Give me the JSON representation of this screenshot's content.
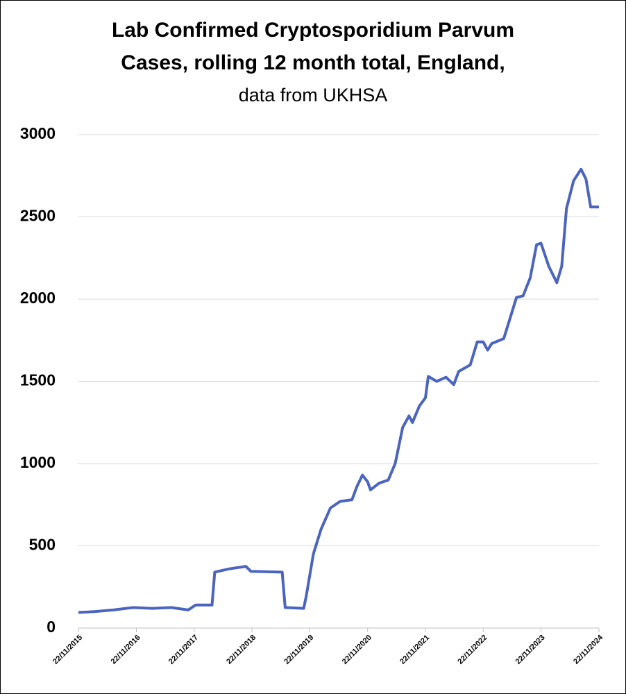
{
  "chart_data": {
    "type": "line",
    "title": [
      "Lab Confirmed Cryptosporidium Parvum",
      "Cases, rolling 12 month total, England,"
    ],
    "subtitle": "data from UKHSA",
    "x": [
      "2015-11-22",
      "2016-03-01",
      "2016-07-01",
      "2016-11-01",
      "2017-03-01",
      "2017-07-01",
      "2017-10-15",
      "2017-12-01",
      "2018-03-15",
      "2018-04-01",
      "2018-07-01",
      "2018-10-15",
      "2018-11-15",
      "2019-06-01",
      "2019-06-20",
      "2019-10-15",
      "2019-11-01",
      "2019-12-15",
      "2020-02-01",
      "2020-04-01",
      "2020-06-01",
      "2020-08-15",
      "2020-09-15",
      "2020-10-20",
      "2020-11-22",
      "2020-12-10",
      "2021-02-01",
      "2021-04-01",
      "2021-05-15",
      "2021-07-01",
      "2021-08-10",
      "2021-09-01",
      "2021-10-15",
      "2021-11-22",
      "2021-12-10",
      "2022-02-01",
      "2022-04-01",
      "2022-05-20",
      "2022-06-20",
      "2022-09-01",
      "2022-10-15",
      "2022-11-22",
      "2022-12-20",
      "2023-01-15",
      "2023-04-01",
      "2023-06-20",
      "2023-08-01",
      "2023-09-15",
      "2023-10-25",
      "2023-11-22",
      "2024-01-10",
      "2024-03-01",
      "2024-04-01",
      "2024-05-01",
      "2024-06-15",
      "2024-08-01",
      "2024-09-01",
      "2024-10-01",
      "2024-11-22"
    ],
    "series": [
      {
        "name": "Cases",
        "color": "#4a64c0",
        "values": [
          95,
          100,
          110,
          125,
          120,
          125,
          110,
          140,
          140,
          340,
          360,
          375,
          345,
          340,
          125,
          120,
          200,
          450,
          600,
          730,
          770,
          780,
          860,
          930,
          890,
          840,
          880,
          900,
          1000,
          1220,
          1290,
          1250,
          1350,
          1400,
          1530,
          1500,
          1525,
          1480,
          1560,
          1600,
          1740,
          1740,
          1690,
          1730,
          1760,
          2010,
          2020,
          2130,
          2330,
          2340,
          2200,
          2100,
          2200,
          2550,
          2720,
          2790,
          2730,
          2560,
          2560
        ]
      }
    ],
    "xlim": [
      "2015-11-22",
      "2024-11-22"
    ],
    "xticks": [
      {
        "value": "2015-11-22",
        "label": "22/11/2015"
      },
      {
        "value": "2016-11-22",
        "label": "22/11/2016"
      },
      {
        "value": "2017-11-22",
        "label": "22/11/2017"
      },
      {
        "value": "2018-11-22",
        "label": "22/11/2018"
      },
      {
        "value": "2019-11-22",
        "label": "22/11/2019"
      },
      {
        "value": "2020-11-22",
        "label": "22/11/2020"
      },
      {
        "value": "2021-11-22",
        "label": "22/11/2021"
      },
      {
        "value": "2022-11-22",
        "label": "22/11/2022"
      },
      {
        "value": "2023-11-22",
        "label": "22/11/2023"
      },
      {
        "value": "2024-11-22",
        "label": "22/11/2024"
      }
    ],
    "ylim": [
      0,
      3000
    ],
    "yticks": [
      0,
      500,
      1000,
      1500,
      2000,
      2500,
      3000
    ],
    "grid": true
  }
}
